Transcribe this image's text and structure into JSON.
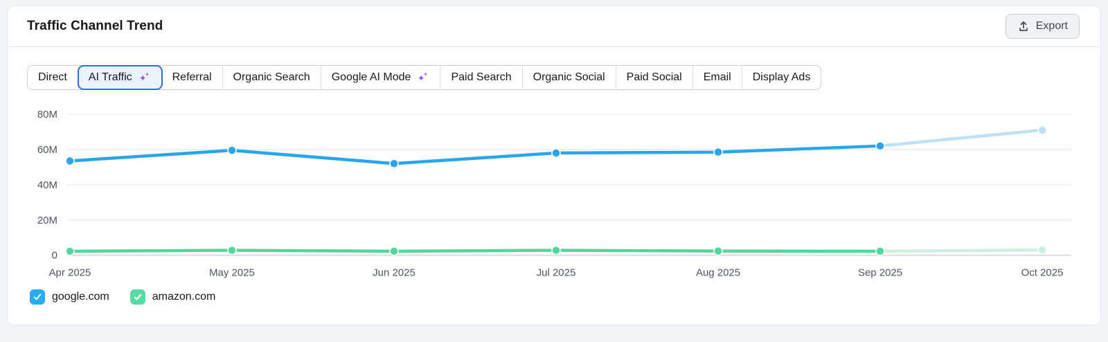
{
  "header": {
    "title": "Traffic Channel Trend",
    "export_label": "Export"
  },
  "tabs": {
    "items": [
      {
        "label": "Direct"
      },
      {
        "label": "AI Traffic",
        "sparkle": true,
        "selected": true
      },
      {
        "label": "Referral"
      },
      {
        "label": "Organic Search"
      },
      {
        "label": "Google AI Mode",
        "sparkle": true
      },
      {
        "label": "Paid Search"
      },
      {
        "label": "Organic Social"
      },
      {
        "label": "Paid Social"
      },
      {
        "label": "Email"
      },
      {
        "label": "Display Ads"
      }
    ]
  },
  "colors": {
    "selected_tab_border": "#2D6FE0",
    "selected_tab_bg": "#EAF2FE",
    "sparkle_purple": "#8E4BEB",
    "google_blue": "#29A5F0",
    "google_blue_light": "#BEE0F9",
    "amazon_green": "#53D69C",
    "amazon_green_light": "#CDEFDF",
    "grid": "#E7E9EE",
    "zero_line": "#D9DCE2"
  },
  "chart_data": {
    "type": "line",
    "title": "Traffic Channel Trend — AI Traffic",
    "x": [
      "Apr 2025",
      "May 2025",
      "Jun 2025",
      "Jul 2025",
      "Aug 2025",
      "Sep 2025",
      "Oct 2025"
    ],
    "series": [
      {
        "name": "google.com",
        "values": [
          53.5,
          59.5,
          52,
          58,
          58.5,
          62,
          71
        ],
        "unit": "M",
        "color": "#29A5F0",
        "projection_color": "#BEE0F9"
      },
      {
        "name": "amazon.com",
        "values": [
          2.3,
          2.8,
          2.3,
          2.8,
          2.4,
          2.3,
          3
        ],
        "unit": "M",
        "color": "#53D69C",
        "projection_color": "#CDEFDF"
      }
    ],
    "projection_from_index": 5,
    "ylim": [
      0,
      80
    ],
    "yticks": [
      0,
      20,
      40,
      60,
      80
    ],
    "ytick_labels": [
      "0",
      "20M",
      "40M",
      "60M",
      "80M"
    ],
    "xlabel": "",
    "ylabel": "",
    "grid": true,
    "legend_position": "bottom-left"
  },
  "legend": {
    "items": [
      {
        "label": "google.com",
        "checked": true,
        "color": "#29ABF2"
      },
      {
        "label": "amazon.com",
        "checked": true,
        "color": "#5ADBA4"
      }
    ]
  }
}
